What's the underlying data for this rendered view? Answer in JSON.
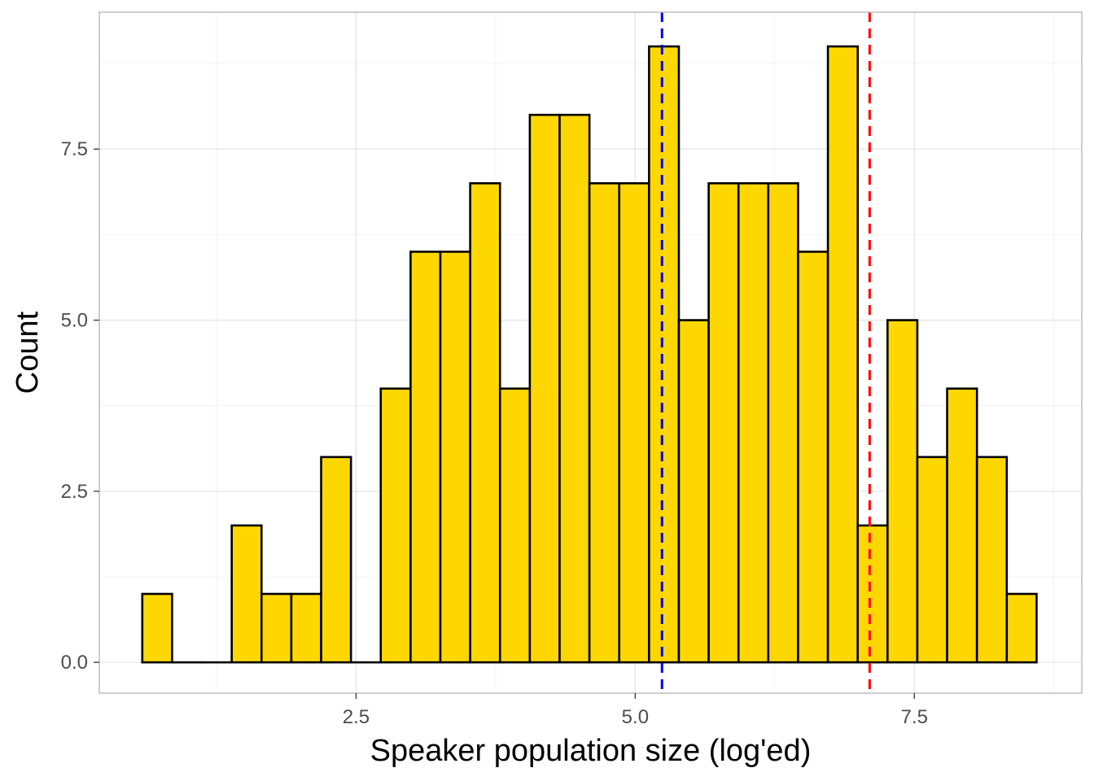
{
  "chart_data": {
    "type": "bar",
    "xlabel": "Speaker population size (log'ed)",
    "ylabel": "Count",
    "xlim": [
      0.2,
      9.0
    ],
    "ylim": [
      -0.45,
      9.5
    ],
    "x_ticks": [
      2.5,
      5.0,
      7.5
    ],
    "x_tick_labels": [
      "2.5",
      "5.0",
      "7.5"
    ],
    "y_ticks": [
      0.0,
      2.5,
      5.0,
      7.5
    ],
    "y_tick_labels": [
      "0.0",
      "2.5",
      "5.0",
      "7.5"
    ],
    "grid": true,
    "bin_width": 0.267,
    "bin_start": 0.585,
    "counts": [
      1,
      0,
      0,
      2,
      1,
      1,
      3,
      0,
      4,
      6,
      6,
      7,
      4,
      8,
      8,
      7,
      7,
      9,
      5,
      7,
      7,
      7,
      6,
      9,
      2,
      5,
      3,
      4,
      3,
      1
    ],
    "fill_color": "#FFD700",
    "edge_color": "#000000",
    "reference_lines": [
      {
        "x": 5.24,
        "color": "#0000FF",
        "style": "dashed"
      },
      {
        "x": 7.1,
        "color": "#FF0000",
        "style": "dashed"
      }
    ]
  }
}
